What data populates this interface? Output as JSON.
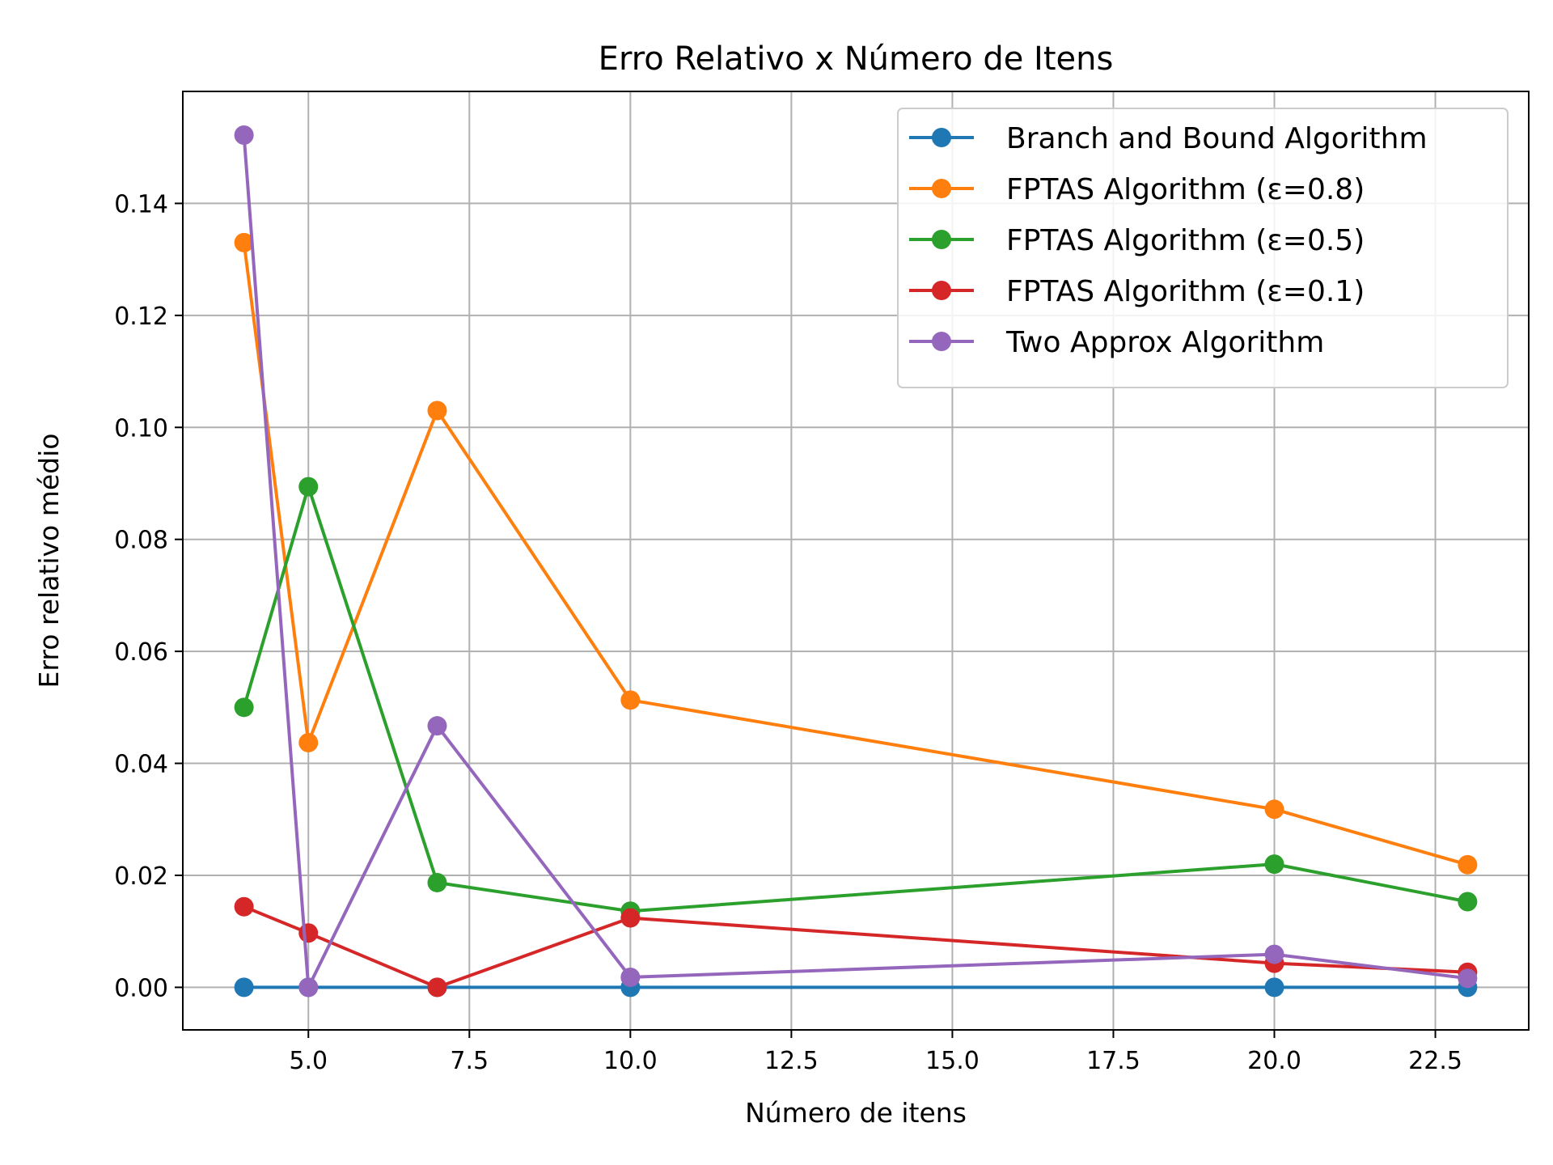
{
  "chart_data": {
    "type": "line",
    "title": "Erro Relativo x Número de Itens",
    "xlabel": "Número de itens",
    "ylabel": "Erro relativo médio",
    "xlim": [
      3.05,
      23.95
    ],
    "ylim": [
      -0.0076,
      0.16
    ],
    "xticks": [
      5.0,
      7.5,
      10.0,
      12.5,
      15.0,
      17.5,
      20.0,
      22.5
    ],
    "xtick_labels": [
      "5.0",
      "7.5",
      "10.0",
      "12.5",
      "15.0",
      "17.5",
      "20.0",
      "22.5"
    ],
    "yticks": [
      0.0,
      0.02,
      0.04,
      0.06,
      0.08,
      0.1,
      0.12,
      0.14
    ],
    "ytick_labels": [
      "0.00",
      "0.02",
      "0.04",
      "0.06",
      "0.08",
      "0.10",
      "0.12",
      "0.14"
    ],
    "grid": true,
    "legend_position": "top-right",
    "x": [
      4,
      5,
      7,
      10,
      20,
      23
    ],
    "series": [
      {
        "name": "Branch and Bound Algorithm",
        "color": "#1f77b4",
        "values": [
          0.0,
          0.0,
          0.0,
          0.0,
          0.0,
          0.0
        ]
      },
      {
        "name": "FPTAS Algorithm (ε=0.8)",
        "color": "#ff7f0e",
        "values": [
          0.133,
          0.0437,
          0.103,
          0.0513,
          0.0318,
          0.0219
        ]
      },
      {
        "name": "FPTAS Algorithm (ε=0.5)",
        "color": "#2ca02c",
        "values": [
          0.05,
          0.0894,
          0.0187,
          0.0136,
          0.022,
          0.0153
        ]
      },
      {
        "name": "FPTAS Algorithm (ε=0.1)",
        "color": "#d62728",
        "values": [
          0.0144,
          0.0097,
          0.0,
          0.0124,
          0.0043,
          0.0027
        ]
      },
      {
        "name": "Two Approx Algorithm",
        "color": "#9467bd",
        "values": [
          0.1522,
          0.0,
          0.0467,
          0.0018,
          0.0059,
          0.0016
        ]
      }
    ]
  }
}
